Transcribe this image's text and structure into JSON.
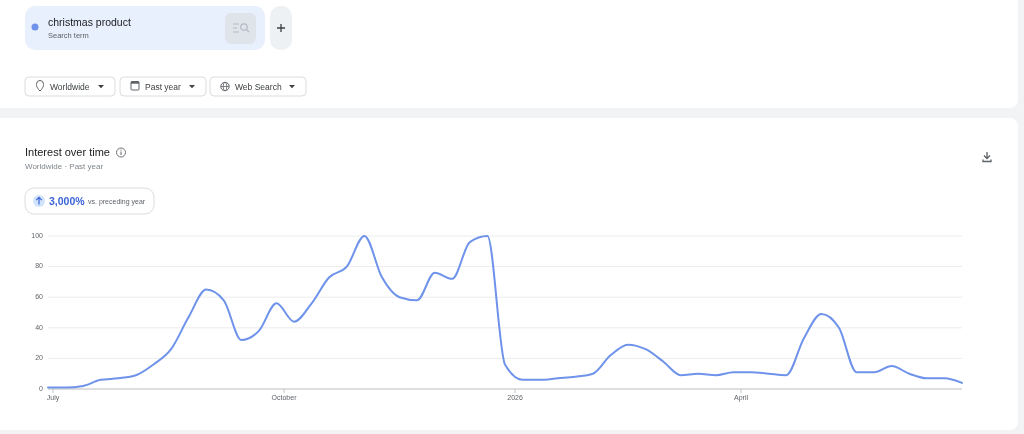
{
  "chart_data": {
    "type": "line",
    "title": "Interest over time",
    "subtitle": "Worldwide · Past year",
    "annotations": [
      "Search term",
      "Worldwide",
      "Past year",
      "Web Search",
      "3,000%",
      "vs. preceding year"
    ],
    "x": [
      "2025-06-29",
      "2025-07-06",
      "2025-07-13",
      "2025-07-20",
      "2025-07-27",
      "2025-08-03",
      "2025-08-10",
      "2025-08-17",
      "2025-08-24",
      "2025-08-31",
      "2025-09-07",
      "2025-09-14",
      "2025-09-21",
      "2025-09-28",
      "2025-10-05",
      "2025-10-12",
      "2025-10-19",
      "2025-10-26",
      "2025-11-02",
      "2025-11-09",
      "2025-11-16",
      "2025-11-23",
      "2025-11-30",
      "2025-12-07",
      "2025-12-14",
      "2025-12-21",
      "2025-12-28",
      "2026-01-04",
      "2026-01-11",
      "2026-01-18",
      "2026-01-25",
      "2026-02-01",
      "2026-02-08",
      "2026-02-15",
      "2026-02-22",
      "2026-03-01",
      "2026-03-08",
      "2026-03-15",
      "2026-03-22",
      "2026-03-29",
      "2026-04-05",
      "2026-04-12",
      "2026-04-19",
      "2026-04-26",
      "2026-05-03",
      "2026-05-10",
      "2026-05-17",
      "2026-05-24",
      "2026-05-31",
      "2026-06-07",
      "2026-06-14",
      "2026-06-21",
      "2026-06-28"
    ],
    "series": [
      {
        "name": "christmas product",
        "color": "#6f93ea",
        "values": [
          1,
          1,
          2,
          6,
          7,
          9,
          16,
          26,
          47,
          65,
          58,
          32,
          38,
          56,
          44,
          56,
          73,
          80,
          100,
          73,
          60,
          58,
          76,
          72,
          96,
          100,
          16,
          6,
          6,
          7,
          8,
          10,
          22,
          29,
          26,
          18,
          9,
          10,
          9,
          11,
          11,
          10,
          9,
          33,
          49,
          40,
          11,
          11,
          15,
          10,
          7,
          7,
          4
        ]
      }
    ],
    "xlim": [
      "2025-06-29",
      "2026-06-28"
    ],
    "xticks": [
      {
        "value": "2025-07-01",
        "label": "July"
      },
      {
        "value": "2025-10-01",
        "label": "October"
      },
      {
        "value": "2026-01-01",
        "label": "2026"
      },
      {
        "value": "2026-04-01",
        "label": "April"
      }
    ],
    "ylim": [
      0,
      100
    ],
    "yticks": [
      0,
      20,
      40,
      60,
      80,
      100
    ],
    "grid": "y",
    "legend": "top left"
  }
}
